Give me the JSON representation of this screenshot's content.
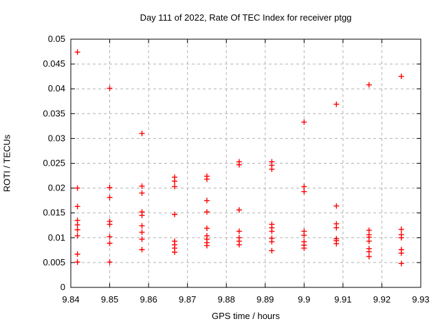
{
  "window": {
    "background_color": "#ffffff",
    "frame_color": "#000000",
    "grid_color": "#b0b0b0",
    "text_color": "#000000"
  },
  "chart_data": {
    "type": "scatter",
    "title": "Day 111 of 2022, Rate Of TEC Index for receiver ptgg",
    "xlabel": "GPS time / hours",
    "ylabel": "ROTI / TECUs",
    "xlim": [
      9.84,
      9.93
    ],
    "ylim": [
      0,
      0.05
    ],
    "grid": true,
    "legend_position": "none",
    "marker": {
      "shape": "plus",
      "color": "#ff0000",
      "size": 9
    },
    "xticks": {
      "values": [
        9.84,
        9.85,
        9.86,
        9.87,
        9.88,
        9.89,
        9.9,
        9.91,
        9.92,
        9.93
      ],
      "labels": [
        "9.84",
        "9.85",
        "9.86",
        "9.87",
        "9.88",
        "9.89",
        "9.9",
        "9.91",
        "9.92",
        "9.93"
      ]
    },
    "yticks": {
      "values": [
        0,
        0.005,
        0.01,
        0.015,
        0.02,
        0.025,
        0.03,
        0.035,
        0.04,
        0.045,
        0.05
      ],
      "labels": [
        "0",
        "0.005",
        "0.01",
        "0.015",
        "0.02",
        "0.025",
        "0.03",
        "0.035",
        "0.04",
        "0.045",
        "0.05"
      ]
    },
    "series": [
      {
        "name": "ROTI",
        "points": [
          [
            9.8417,
            0.0474
          ],
          [
            9.8417,
            0.02
          ],
          [
            9.8417,
            0.0163
          ],
          [
            9.8417,
            0.0135
          ],
          [
            9.8417,
            0.0126
          ],
          [
            9.8417,
            0.0116
          ],
          [
            9.8417,
            0.0104
          ],
          [
            9.8417,
            0.0067
          ],
          [
            9.8417,
            0.0051
          ],
          [
            9.85,
            0.0401
          ],
          [
            9.85,
            0.0201
          ],
          [
            9.85,
            0.0181
          ],
          [
            9.85,
            0.0133
          ],
          [
            9.85,
            0.0127
          ],
          [
            9.85,
            0.0102
          ],
          [
            9.85,
            0.0089
          ],
          [
            9.85,
            0.0051
          ],
          [
            9.8583,
            0.031
          ],
          [
            9.8583,
            0.0204
          ],
          [
            9.8583,
            0.019
          ],
          [
            9.8583,
            0.0152
          ],
          [
            9.8583,
            0.0145
          ],
          [
            9.8583,
            0.0124
          ],
          [
            9.8583,
            0.0111
          ],
          [
            9.8583,
            0.0097
          ],
          [
            9.8583,
            0.0076
          ],
          [
            9.8667,
            0.0222
          ],
          [
            9.8667,
            0.0214
          ],
          [
            9.8667,
            0.0203
          ],
          [
            9.8667,
            0.0147
          ],
          [
            9.8667,
            0.0093
          ],
          [
            9.8667,
            0.0086
          ],
          [
            9.8667,
            0.0079
          ],
          [
            9.8667,
            0.0071
          ],
          [
            9.875,
            0.0224
          ],
          [
            9.875,
            0.0218
          ],
          [
            9.875,
            0.0175
          ],
          [
            9.875,
            0.0152
          ],
          [
            9.875,
            0.0119
          ],
          [
            9.875,
            0.0104
          ],
          [
            9.875,
            0.0097
          ],
          [
            9.875,
            0.009
          ],
          [
            9.875,
            0.0084
          ],
          [
            9.8833,
            0.0253
          ],
          [
            9.8833,
            0.0247
          ],
          [
            9.8833,
            0.0156
          ],
          [
            9.8833,
            0.0113
          ],
          [
            9.8833,
            0.01
          ],
          [
            9.8833,
            0.0093
          ],
          [
            9.8833,
            0.0086
          ],
          [
            9.8917,
            0.0253
          ],
          [
            9.8917,
            0.0246
          ],
          [
            9.8917,
            0.0238
          ],
          [
            9.8917,
            0.0127
          ],
          [
            9.8917,
            0.012
          ],
          [
            9.8917,
            0.0113
          ],
          [
            9.8917,
            0.0099
          ],
          [
            9.8917,
            0.0092
          ],
          [
            9.8917,
            0.0074
          ],
          [
            9.9,
            0.0333
          ],
          [
            9.9,
            0.0203
          ],
          [
            9.9,
            0.0193
          ],
          [
            9.9,
            0.0113
          ],
          [
            9.9,
            0.0105
          ],
          [
            9.9,
            0.0092
          ],
          [
            9.9,
            0.0085
          ],
          [
            9.9,
            0.0079
          ],
          [
            9.9083,
            0.0369
          ],
          [
            9.9083,
            0.0164
          ],
          [
            9.9083,
            0.0128
          ],
          [
            9.9083,
            0.012
          ],
          [
            9.9083,
            0.0098
          ],
          [
            9.9083,
            0.0094
          ],
          [
            9.9083,
            0.0088
          ],
          [
            9.9167,
            0.0408
          ],
          [
            9.9167,
            0.0115
          ],
          [
            9.9167,
            0.0106
          ],
          [
            9.9167,
            0.0101
          ],
          [
            9.9167,
            0.0093
          ],
          [
            9.9167,
            0.0078
          ],
          [
            9.9167,
            0.0072
          ],
          [
            9.9167,
            0.0062
          ],
          [
            9.925,
            0.0425
          ],
          [
            9.925,
            0.0117
          ],
          [
            9.925,
            0.0106
          ],
          [
            9.925,
            0.01
          ],
          [
            9.925,
            0.0076
          ],
          [
            9.925,
            0.0069
          ],
          [
            9.925,
            0.0048
          ]
        ]
      }
    ]
  }
}
